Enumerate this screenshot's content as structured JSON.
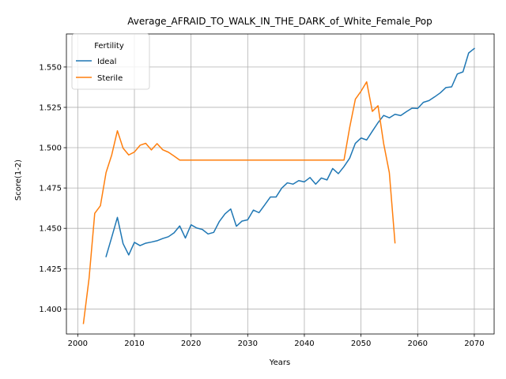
{
  "chart_data": {
    "type": "line",
    "title": "Average_AFRAID_TO_WALK_IN_THE_DARK_of_White_Female_Pop",
    "xlabel": "Years",
    "ylabel": "Score(1-2)",
    "xlim": [
      1998,
      2073.5
    ],
    "ylim": [
      1.3845,
      1.5705
    ],
    "xticks": [
      2000,
      2010,
      2020,
      2030,
      2040,
      2050,
      2060,
      2070
    ],
    "yticks": [
      1.4,
      1.425,
      1.45,
      1.475,
      1.5,
      1.525,
      1.55
    ],
    "xtick_labels": [
      "2000",
      "2010",
      "2020",
      "2030",
      "2040",
      "2050",
      "2060",
      "2070"
    ],
    "ytick_labels": [
      "1.400",
      "1.425",
      "1.450",
      "1.475",
      "1.500",
      "1.525",
      "1.550"
    ],
    "grid": true,
    "legend": {
      "title": "Fertility",
      "placement": "top-left"
    },
    "series": [
      {
        "name": "Ideal",
        "color": "#1f77b4",
        "x": [
          2005,
          2006,
          2007,
          2008,
          2009,
          2010,
          2011,
          2012,
          2013,
          2014,
          2015,
          2016,
          2017,
          2018,
          2019,
          2020,
          2021,
          2022,
          2023,
          2024,
          2025,
          2026,
          2027,
          2028,
          2029,
          2030,
          2031,
          2032,
          2033,
          2034,
          2035,
          2036,
          2037,
          2038,
          2039,
          2040,
          2041,
          2042,
          2043,
          2044,
          2045,
          2046,
          2047,
          2048,
          2049,
          2050,
          2051,
          2052,
          2053,
          2054,
          2055,
          2056,
          2057,
          2058,
          2059,
          2060,
          2061,
          2062,
          2063,
          2064,
          2065,
          2066,
          2067,
          2068,
          2069,
          2070
        ],
        "y": [
          1.4325,
          1.4445,
          1.4568,
          1.4405,
          1.4335,
          1.4413,
          1.4393,
          1.4408,
          1.4415,
          1.4423,
          1.4437,
          1.4448,
          1.4472,
          1.4515,
          1.444,
          1.4522,
          1.4502,
          1.4493,
          1.4465,
          1.4475,
          1.4543,
          1.459,
          1.462,
          1.4513,
          1.4545,
          1.4553,
          1.4613,
          1.4597,
          1.4645,
          1.4694,
          1.4694,
          1.4749,
          1.4782,
          1.4774,
          1.4796,
          1.4788,
          1.4815,
          1.4774,
          1.4812,
          1.48,
          1.4871,
          1.4839,
          1.4883,
          1.4935,
          1.5027,
          1.506,
          1.5048,
          1.5102,
          1.5155,
          1.52,
          1.5185,
          1.5207,
          1.5199,
          1.5223,
          1.5245,
          1.5243,
          1.5281,
          1.5292,
          1.5315,
          1.534,
          1.5373,
          1.5377,
          1.5457,
          1.547,
          1.5587,
          1.5615
        ]
      },
      {
        "name": "Sterile",
        "color": "#ff7f0e",
        "x": [
          2001,
          2002,
          2003,
          2004,
          2005,
          2006,
          2007,
          2008,
          2009,
          2010,
          2011,
          2012,
          2013,
          2014,
          2015,
          2016,
          2017,
          2018,
          2019,
          2020,
          2021,
          2022,
          2023,
          2024,
          2025,
          2026,
          2027,
          2028,
          2029,
          2030,
          2031,
          2032,
          2033,
          2034,
          2035,
          2036,
          2037,
          2038,
          2039,
          2040,
          2041,
          2042,
          2043,
          2044,
          2045,
          2046,
          2047,
          2048,
          2049,
          2050,
          2051,
          2052,
          2053,
          2054,
          2055,
          2056
        ],
        "y": [
          1.391,
          1.419,
          1.4593,
          1.464,
          1.4846,
          1.4955,
          1.5105,
          1.4997,
          1.4955,
          1.4973,
          1.5015,
          1.5027,
          1.4986,
          1.5025,
          1.4987,
          1.4972,
          1.4948,
          1.4923,
          1.4923,
          1.4923,
          1.4923,
          1.4923,
          1.4923,
          1.4923,
          1.4923,
          1.4923,
          1.4923,
          1.4923,
          1.4923,
          1.4923,
          1.4923,
          1.4923,
          1.4923,
          1.4923,
          1.4923,
          1.4923,
          1.4923,
          1.4923,
          1.4923,
          1.4923,
          1.4923,
          1.4923,
          1.4923,
          1.4923,
          1.4923,
          1.4923,
          1.4923,
          1.5125,
          1.53,
          1.535,
          1.5408,
          1.5225,
          1.526,
          1.5025,
          1.4845,
          1.441
        ]
      }
    ]
  }
}
